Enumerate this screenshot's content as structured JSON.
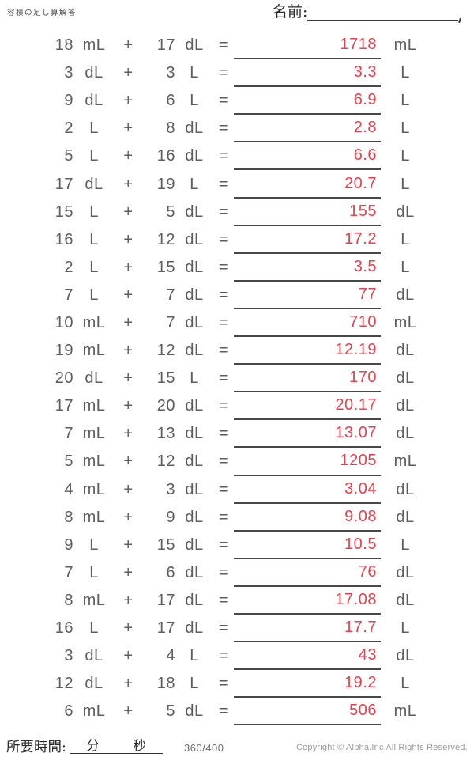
{
  "header": {
    "doc_title": "容積の足し算解答",
    "name_label": "名前:"
  },
  "symbols": {
    "plus": "+",
    "equals": "="
  },
  "problems": [
    {
      "a": "18",
      "unit_a": "mL",
      "b": "17",
      "unit_b": "dL",
      "answer": "1718",
      "unit_ans": "mL"
    },
    {
      "a": "3",
      "unit_a": "dL",
      "b": "3",
      "unit_b": "L",
      "answer": "3.3",
      "unit_ans": "L"
    },
    {
      "a": "9",
      "unit_a": "dL",
      "b": "6",
      "unit_b": "L",
      "answer": "6.9",
      "unit_ans": "L"
    },
    {
      "a": "2",
      "unit_a": "L",
      "b": "8",
      "unit_b": "dL",
      "answer": "2.8",
      "unit_ans": "L"
    },
    {
      "a": "5",
      "unit_a": "L",
      "b": "16",
      "unit_b": "dL",
      "answer": "6.6",
      "unit_ans": "L"
    },
    {
      "a": "17",
      "unit_a": "dL",
      "b": "19",
      "unit_b": "L",
      "answer": "20.7",
      "unit_ans": "L"
    },
    {
      "a": "15",
      "unit_a": "L",
      "b": "5",
      "unit_b": "dL",
      "answer": "155",
      "unit_ans": "dL"
    },
    {
      "a": "16",
      "unit_a": "L",
      "b": "12",
      "unit_b": "dL",
      "answer": "17.2",
      "unit_ans": "L"
    },
    {
      "a": "2",
      "unit_a": "L",
      "b": "15",
      "unit_b": "dL",
      "answer": "3.5",
      "unit_ans": "L"
    },
    {
      "a": "7",
      "unit_a": "L",
      "b": "7",
      "unit_b": "dL",
      "answer": "77",
      "unit_ans": "dL"
    },
    {
      "a": "10",
      "unit_a": "mL",
      "b": "7",
      "unit_b": "dL",
      "answer": "710",
      "unit_ans": "mL"
    },
    {
      "a": "19",
      "unit_a": "mL",
      "b": "12",
      "unit_b": "dL",
      "answer": "12.19",
      "unit_ans": "dL"
    },
    {
      "a": "20",
      "unit_a": "dL",
      "b": "15",
      "unit_b": "L",
      "answer": "170",
      "unit_ans": "dL"
    },
    {
      "a": "17",
      "unit_a": "mL",
      "b": "20",
      "unit_b": "dL",
      "answer": "20.17",
      "unit_ans": "dL"
    },
    {
      "a": "7",
      "unit_a": "mL",
      "b": "13",
      "unit_b": "dL",
      "answer": "13.07",
      "unit_ans": "dL"
    },
    {
      "a": "5",
      "unit_a": "mL",
      "b": "12",
      "unit_b": "dL",
      "answer": "1205",
      "unit_ans": "mL"
    },
    {
      "a": "4",
      "unit_a": "mL",
      "b": "3",
      "unit_b": "dL",
      "answer": "3.04",
      "unit_ans": "dL"
    },
    {
      "a": "8",
      "unit_a": "mL",
      "b": "9",
      "unit_b": "dL",
      "answer": "9.08",
      "unit_ans": "dL"
    },
    {
      "a": "9",
      "unit_a": "L",
      "b": "15",
      "unit_b": "dL",
      "answer": "10.5",
      "unit_ans": "L"
    },
    {
      "a": "7",
      "unit_a": "L",
      "b": "6",
      "unit_b": "dL",
      "answer": "76",
      "unit_ans": "dL"
    },
    {
      "a": "8",
      "unit_a": "mL",
      "b": "17",
      "unit_b": "dL",
      "answer": "17.08",
      "unit_ans": "dL"
    },
    {
      "a": "16",
      "unit_a": "L",
      "b": "17",
      "unit_b": "dL",
      "answer": "17.7",
      "unit_ans": "L"
    },
    {
      "a": "3",
      "unit_a": "dL",
      "b": "4",
      "unit_b": "L",
      "answer": "43",
      "unit_ans": "dL"
    },
    {
      "a": "12",
      "unit_a": "dL",
      "b": "18",
      "unit_b": "L",
      "answer": "19.2",
      "unit_ans": "L"
    },
    {
      "a": "6",
      "unit_a": "mL",
      "b": "5",
      "unit_b": "dL",
      "answer": "506",
      "unit_ans": "mL"
    }
  ],
  "footer": {
    "time_label": "所要時間:",
    "minutes_label": "分",
    "seconds_label": "秒",
    "page_indicator": "360/400",
    "copyright": "Copyright © Alpha.Inc All Rights Reserved."
  },
  "colors": {
    "text_gray": "#5f5c5c",
    "answer_red": "#ed3e4b",
    "line_dark": "#4a4747"
  }
}
